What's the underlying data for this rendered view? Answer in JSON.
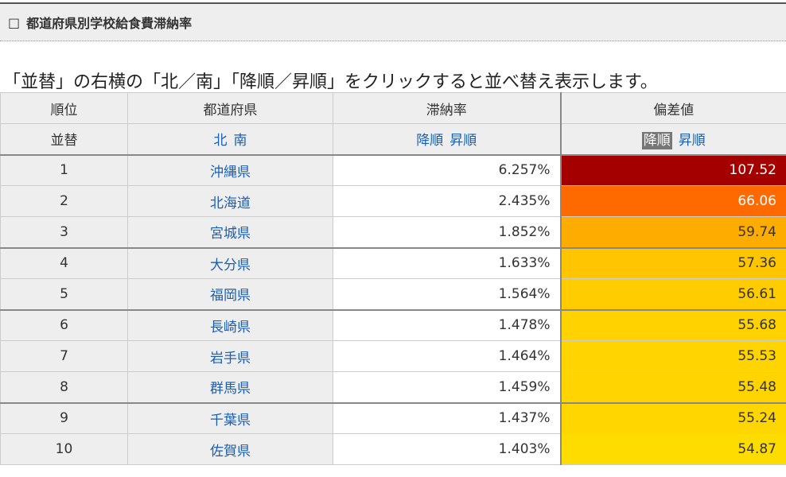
{
  "header": {
    "box_icon": "□",
    "title": "都道府県別学校給食費滞納率"
  },
  "instruction": "「並替」の右横の「北／南」「降順／昇順」をクリックすると並べ替え表示します。",
  "table": {
    "columns": {
      "rank": "順位",
      "prefecture": "都道府県",
      "rate": "滞納率",
      "deviation": "偏差値"
    },
    "sort_row": {
      "label": "並替",
      "north": "北",
      "south": "南",
      "rate_desc": "降順",
      "rate_asc": "昇順",
      "dev_desc": "降順",
      "dev_asc": "昇順"
    },
    "rows": [
      {
        "rank": "1",
        "prefecture": "沖縄県",
        "rate": "6.257%",
        "deviation": "107.52",
        "bg": "#a50000",
        "fg": "#ffffff"
      },
      {
        "rank": "2",
        "prefecture": "北海道",
        "rate": "2.435%",
        "deviation": "66.06",
        "bg": "#ff6a00",
        "fg": "#ffffff"
      },
      {
        "rank": "3",
        "prefecture": "宮城県",
        "rate": "1.852%",
        "deviation": "59.74",
        "bg": "#ffac00",
        "fg": "#333333"
      },
      {
        "rank": "4",
        "prefecture": "大分県",
        "rate": "1.633%",
        "deviation": "57.36",
        "bg": "#ffc600",
        "fg": "#333333"
      },
      {
        "rank": "5",
        "prefecture": "福岡県",
        "rate": "1.564%",
        "deviation": "56.61",
        "bg": "#ffcc00",
        "fg": "#333333"
      },
      {
        "rank": "6",
        "prefecture": "長崎県",
        "rate": "1.478%",
        "deviation": "55.68",
        "bg": "#ffd200",
        "fg": "#333333"
      },
      {
        "rank": "7",
        "prefecture": "岩手県",
        "rate": "1.464%",
        "deviation": "55.53",
        "bg": "#ffd400",
        "fg": "#333333"
      },
      {
        "rank": "8",
        "prefecture": "群馬県",
        "rate": "1.459%",
        "deviation": "55.48",
        "bg": "#ffd400",
        "fg": "#333333"
      },
      {
        "rank": "9",
        "prefecture": "千葉県",
        "rate": "1.437%",
        "deviation": "55.24",
        "bg": "#ffd600",
        "fg": "#333333"
      },
      {
        "rank": "10",
        "prefecture": "佐賀県",
        "rate": "1.403%",
        "deviation": "54.87",
        "bg": "#ffdc00",
        "fg": "#333333"
      }
    ]
  }
}
